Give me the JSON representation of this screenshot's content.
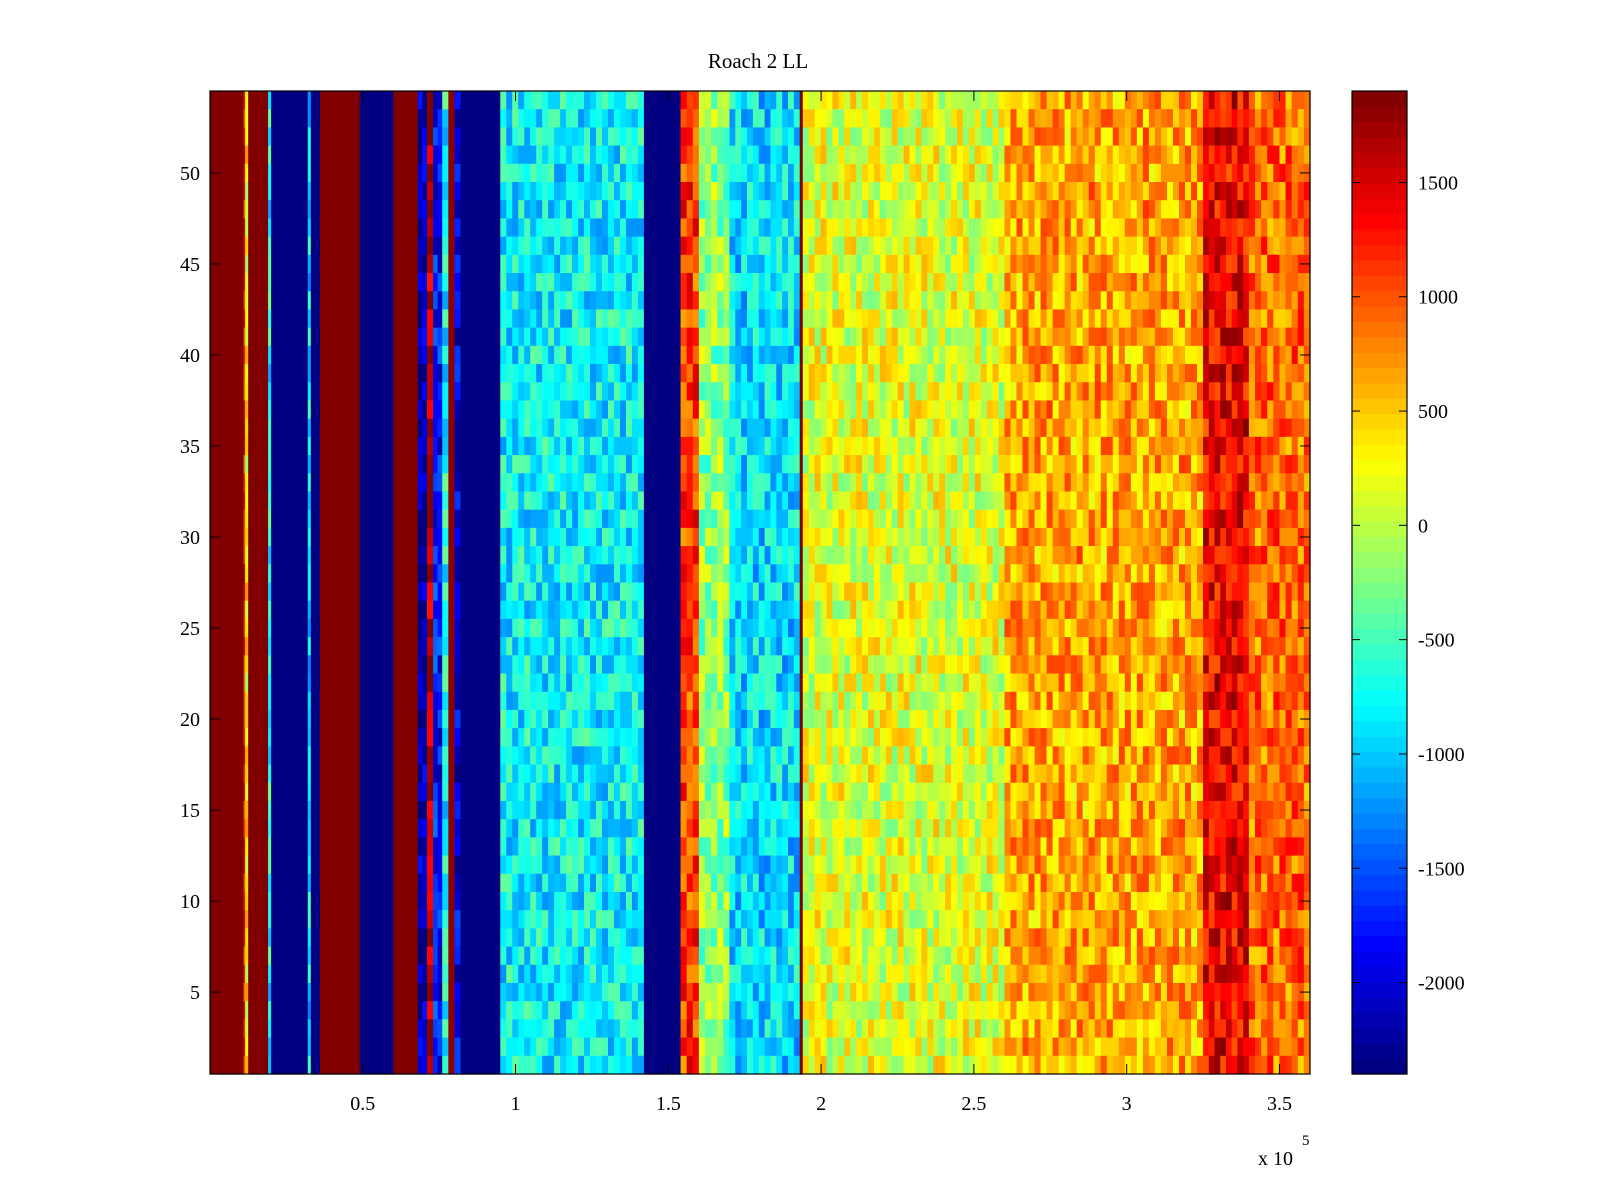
{
  "chart_data": {
    "type": "heatmap",
    "title": "Roach 2 LL",
    "xlabel": "",
    "ylabel": "",
    "x_multiplier_label": "x 10",
    "x_multiplier_exponent": "5",
    "xlim": [
      0,
      3.6
    ],
    "ylim": [
      0.5,
      54.5
    ],
    "rows": 54,
    "xticks": [
      0.5,
      1,
      1.5,
      2,
      2.5,
      3,
      3.5
    ],
    "xtick_labels": [
      "0.5",
      "1",
      "1.5",
      "2",
      "2.5",
      "3",
      "3.5"
    ],
    "yticks": [
      5,
      10,
      15,
      20,
      25,
      30,
      35,
      40,
      45,
      50
    ],
    "ytick_labels": [
      "5",
      "10",
      "15",
      "20",
      "25",
      "30",
      "35",
      "40",
      "45",
      "50"
    ],
    "colorbar": {
      "range": [
        -2400,
        1900
      ],
      "ticks": [
        -2000,
        -1500,
        -1000,
        -500,
        0,
        500,
        1000,
        1500
      ],
      "tick_labels": [
        "-2000",
        "-1500",
        "-1000",
        "-500",
        "0",
        "500",
        "1000",
        "1500"
      ],
      "colormap": "jet",
      "levels": 64
    },
    "column_bands": [
      {
        "x0": 0.0,
        "x1": 0.11,
        "value": 1900
      },
      {
        "x0": 0.11,
        "x1": 0.115,
        "value": 1200
      },
      {
        "x0": 0.115,
        "x1": 0.125,
        "value": 300
      },
      {
        "x0": 0.125,
        "x1": 0.19,
        "value": 1900
      },
      {
        "x0": 0.19,
        "x1": 0.2,
        "value": -700
      },
      {
        "x0": 0.2,
        "x1": 0.32,
        "value": -2400
      },
      {
        "x0": 0.32,
        "x1": 0.33,
        "value": -900
      },
      {
        "x0": 0.33,
        "x1": 0.36,
        "value": -2400
      },
      {
        "x0": 0.36,
        "x1": 0.49,
        "value": 1900
      },
      {
        "x0": 0.49,
        "x1": 0.6,
        "value": -2400
      },
      {
        "x0": 0.6,
        "x1": 0.68,
        "value": 1900
      },
      {
        "x0": 0.68,
        "x1": 0.71,
        "value": -2200
      },
      {
        "x0": 0.71,
        "x1": 0.73,
        "value": 1700
      },
      {
        "x0": 0.73,
        "x1": 0.76,
        "value": -1800
      },
      {
        "x0": 0.76,
        "x1": 0.78,
        "value": -700
      },
      {
        "x0": 0.78,
        "x1": 0.8,
        "value": 1800
      },
      {
        "x0": 0.8,
        "x1": 0.82,
        "value": -2000
      },
      {
        "x0": 0.82,
        "x1": 0.95,
        "value": -2400
      },
      {
        "x0": 0.95,
        "x1": 1.42,
        "value": -800
      },
      {
        "x0": 1.42,
        "x1": 1.54,
        "value": -2400
      },
      {
        "x0": 1.54,
        "x1": 1.6,
        "value": 1100
      },
      {
        "x0": 1.6,
        "x1": 1.7,
        "value": -200
      },
      {
        "x0": 1.7,
        "x1": 1.93,
        "value": -900
      },
      {
        "x0": 1.93,
        "x1": 1.94,
        "value": 1900
      },
      {
        "x0": 1.94,
        "x1": 2.6,
        "value": 150
      },
      {
        "x0": 2.6,
        "x1": 3.25,
        "value": 650
      },
      {
        "x0": 3.25,
        "x1": 3.4,
        "value": 1400
      },
      {
        "x0": 3.4,
        "x1": 3.6,
        "value": 900
      }
    ]
  }
}
